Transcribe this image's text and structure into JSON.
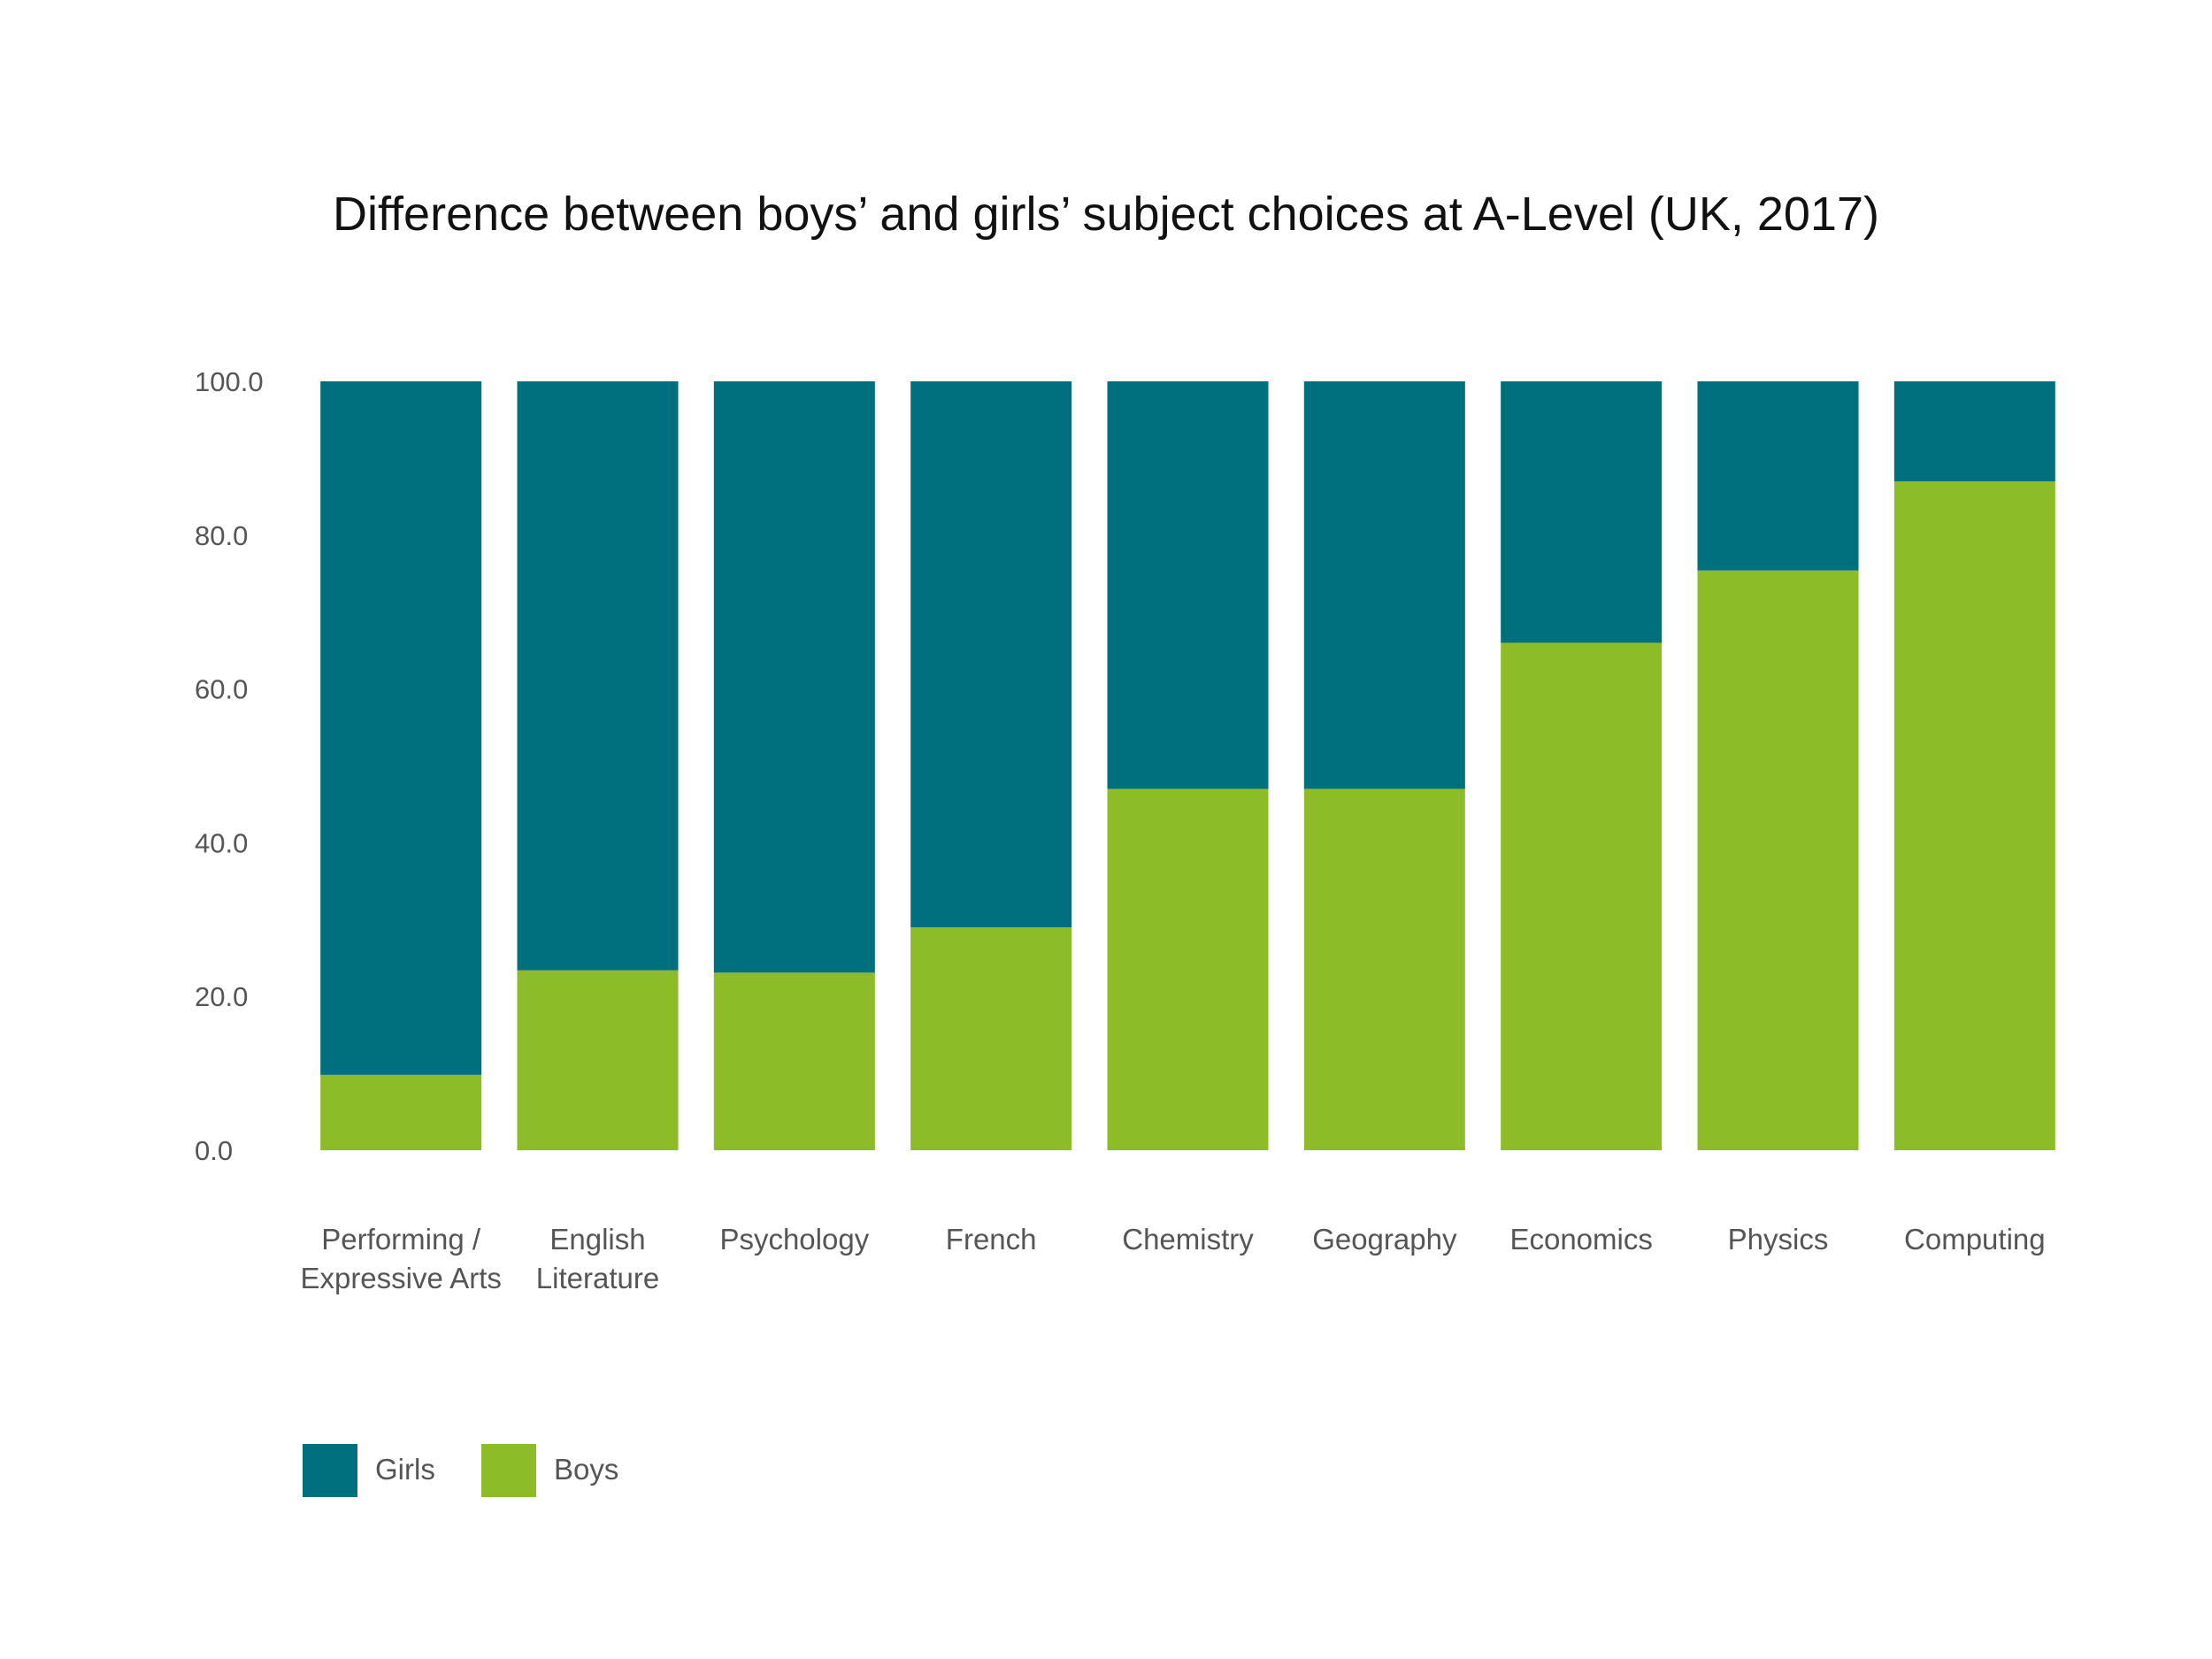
{
  "chart_data": {
    "type": "bar",
    "stacked": true,
    "title": "Difference between boys’ and girls’ subject choices at A-Level (UK, 2017)",
    "xlabel": "",
    "ylabel": "",
    "ylim": [
      0,
      100
    ],
    "yticks": [
      "0.0",
      "20.0",
      "40.0",
      "60.0",
      "80.0",
      "100.0"
    ],
    "ytick_values": [
      0,
      20,
      40,
      60,
      80,
      100
    ],
    "grid": false,
    "legend_position": "bottom-left",
    "categories": [
      [
        "Performing /",
        "Expressive Arts"
      ],
      [
        "English",
        "Literature"
      ],
      [
        "Psychology"
      ],
      [
        "French"
      ],
      [
        "Chemistry"
      ],
      [
        "Geography"
      ],
      [
        "Economics"
      ],
      [
        "Physics"
      ],
      [
        "Computing"
      ]
    ],
    "series": [
      {
        "name": "Boys",
        "color": "#8cbd28",
        "values": [
          9.8,
          23.4,
          23.1,
          29.0,
          47.0,
          47.0,
          66.0,
          75.4,
          87.0
        ]
      },
      {
        "name": "Girls",
        "color": "#006f7e",
        "values": [
          90.2,
          76.6,
          76.9,
          71.0,
          53.0,
          53.0,
          34.0,
          24.6,
          13.0
        ]
      }
    ],
    "legend": [
      {
        "name": "Girls",
        "color": "#006f7e"
      },
      {
        "name": "Boys",
        "color": "#8cbd28"
      }
    ]
  }
}
